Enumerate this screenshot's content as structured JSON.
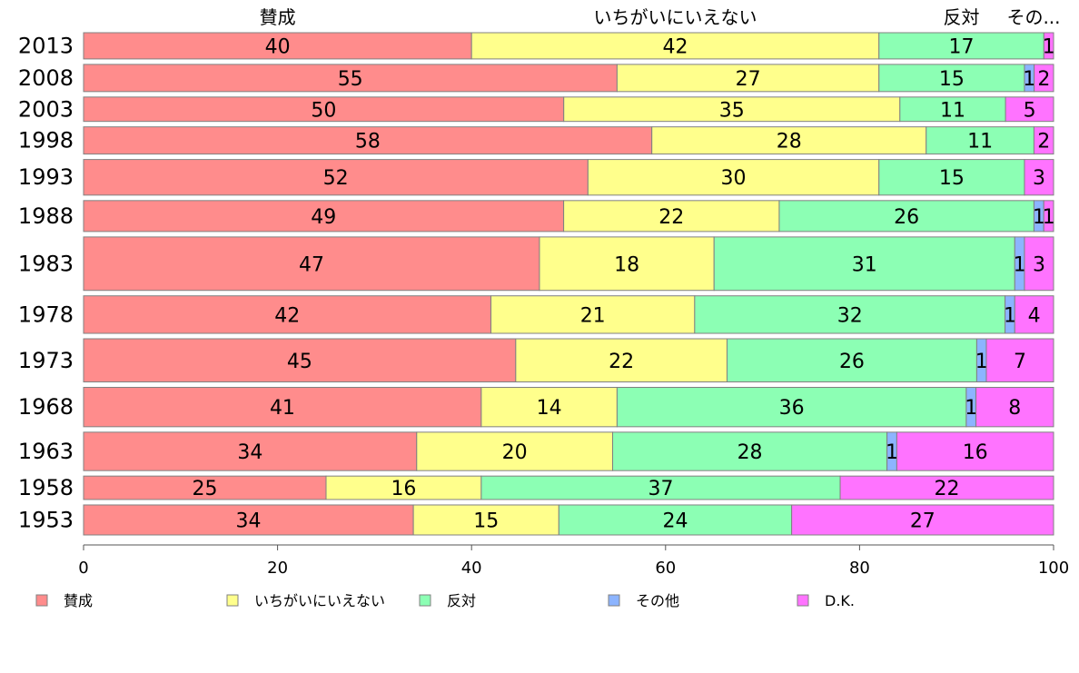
{
  "chart_data": {
    "type": "bar",
    "orientation": "horizontal",
    "stacked": true,
    "percent_stacked": true,
    "categories": [
      "2013",
      "2008",
      "2003",
      "1998",
      "1993",
      "1988",
      "1983",
      "1978",
      "1973",
      "1968",
      "1963",
      "1958",
      "1953"
    ],
    "category_weights": [
      28,
      29,
      26,
      29,
      38,
      33,
      57,
      40,
      46,
      42,
      41,
      25,
      32
    ],
    "series": [
      {
        "name": "賛成",
        "color": "#ff8c8c",
        "values": [
          40,
          55,
          50,
          58,
          52,
          49,
          47,
          42,
          45,
          41,
          34,
          25,
          34
        ]
      },
      {
        "name": "いちがいにいえない",
        "color": "#ffff8c",
        "values": [
          42,
          27,
          35,
          28,
          30,
          22,
          18,
          21,
          22,
          14,
          20,
          16,
          15
        ]
      },
      {
        "name": "反対",
        "color": "#8cffb4",
        "values": [
          17,
          15,
          11,
          11,
          15,
          26,
          31,
          32,
          26,
          36,
          28,
          37,
          24
        ]
      },
      {
        "name": "その他",
        "color": "#8cb4ff",
        "values": [
          0,
          1,
          0,
          0,
          0,
          1,
          1,
          1,
          1,
          1,
          1,
          0,
          0
        ]
      },
      {
        "name": "D.K.",
        "color": "#ff73ff",
        "values": [
          1,
          2,
          5,
          2,
          3,
          1,
          3,
          4,
          7,
          8,
          16,
          22,
          27
        ]
      }
    ],
    "top_labels": [
      "賛成",
      "いちがいにいえない",
      "反対",
      "その..."
    ],
    "x_ticks": [
      "0",
      "20",
      "40",
      "60",
      "80",
      "100"
    ],
    "xlim": [
      0,
      100
    ],
    "legend_position": "bottom",
    "grid": false
  }
}
